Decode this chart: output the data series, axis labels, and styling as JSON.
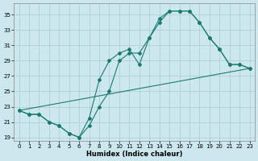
{
  "xlabel": "Humidex (Indice chaleur)",
  "xlim": [
    -0.5,
    23.5
  ],
  "ylim": [
    18.5,
    36.5
  ],
  "yticks": [
    19,
    21,
    23,
    25,
    27,
    29,
    31,
    33,
    35
  ],
  "xticks": [
    0,
    1,
    2,
    3,
    4,
    5,
    6,
    7,
    8,
    9,
    10,
    11,
    12,
    13,
    14,
    15,
    16,
    17,
    18,
    19,
    20,
    21,
    22,
    23
  ],
  "bg_color": "#cce8ee",
  "grid_color": "#aaccd4",
  "line_color": "#1a7a6e",
  "line1_x": [
    0,
    1,
    2,
    3,
    4,
    5,
    6,
    7,
    8,
    9,
    10,
    11,
    12,
    13,
    14,
    15,
    16,
    17,
    18,
    19,
    20,
    21,
    22,
    23
  ],
  "line1_y": [
    22.5,
    22.0,
    22.0,
    21.0,
    20.5,
    19.5,
    19.0,
    20.5,
    23.0,
    25.0,
    29.0,
    30.0,
    30.0,
    32.0,
    34.0,
    35.5,
    35.5,
    35.5,
    34.0,
    32.0,
    30.5,
    28.5,
    28.5,
    28.0
  ],
  "line2_x": [
    0,
    1,
    2,
    3,
    4,
    5,
    6,
    7,
    8,
    9,
    10,
    11,
    12,
    13,
    14,
    15,
    16,
    17,
    18,
    19,
    20,
    21,
    22,
    23
  ],
  "line2_y": [
    22.5,
    22.0,
    22.0,
    21.0,
    20.5,
    19.5,
    19.0,
    21.5,
    26.5,
    29.0,
    30.0,
    30.5,
    28.5,
    32.0,
    34.5,
    35.5,
    35.5,
    35.5,
    34.0,
    32.0,
    30.5,
    28.5,
    28.5,
    28.0
  ],
  "line3_x": [
    0,
    23
  ],
  "line3_y": [
    22.5,
    28.0
  ]
}
